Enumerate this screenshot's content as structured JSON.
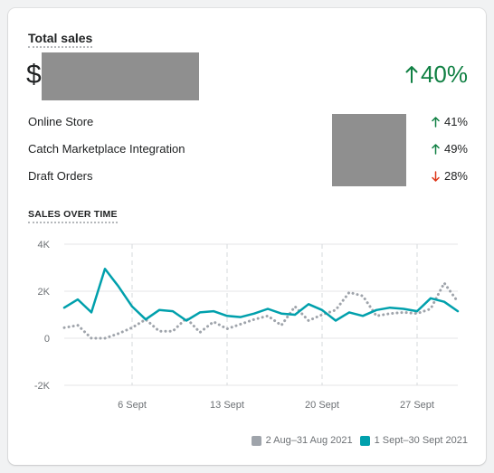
{
  "card": {
    "title": "Total sales",
    "currency_symbol": "$",
    "total_change": "40%",
    "total_change_direction": "up",
    "breakdown": [
      {
        "label": "Online Store",
        "change": "41%",
        "direction": "up"
      },
      {
        "label": "Catch Marketplace Integration",
        "change": "49%",
        "direction": "up"
      },
      {
        "label": "Draft Orders",
        "change": "28%",
        "direction": "down"
      }
    ],
    "sales_over_time_title": "SALES OVER TIME"
  },
  "colors": {
    "positive": "#108043",
    "negative": "#de3618",
    "current_series": "#00a0ac",
    "previous_series": "#9fa4ab",
    "redaction": "#8f8f8f"
  },
  "chart_data": {
    "type": "line",
    "y_ticks": [
      "4K",
      "2K",
      "0",
      "-2K"
    ],
    "y_tick_values": [
      4000,
      2000,
      0,
      -2000
    ],
    "ylim": [
      -2000,
      4000
    ],
    "x_ticks": [
      {
        "label": "6 Sept",
        "day": 6
      },
      {
        "label": "13 Sept",
        "day": 13
      },
      {
        "label": "20 Sept",
        "day": 20
      },
      {
        "label": "27 Sept",
        "day": 27
      }
    ],
    "x_domain": [
      1,
      30
    ],
    "legend": "bottom-right",
    "series": [
      {
        "name": "2 Aug–31 Aug 2021",
        "style": "dotted",
        "values": [
          450,
          550,
          0,
          0,
          200,
          450,
          800,
          300,
          300,
          850,
          250,
          700,
          400,
          600,
          800,
          950,
          550,
          1350,
          750,
          1000,
          1200,
          1950,
          1800,
          950,
          1050,
          1100,
          1050,
          1250,
          2350,
          1550
        ]
      },
      {
        "name": "1 Sept–30 Sept 2021",
        "style": "solid",
        "values": [
          1300,
          1650,
          1100,
          2950,
          2200,
          1350,
          800,
          1200,
          1150,
          750,
          1100,
          1150,
          950,
          900,
          1050,
          1250,
          1050,
          1000,
          1450,
          1200,
          750,
          1100,
          950,
          1200,
          1300,
          1250,
          1150,
          1700,
          1550,
          1150
        ]
      }
    ]
  }
}
